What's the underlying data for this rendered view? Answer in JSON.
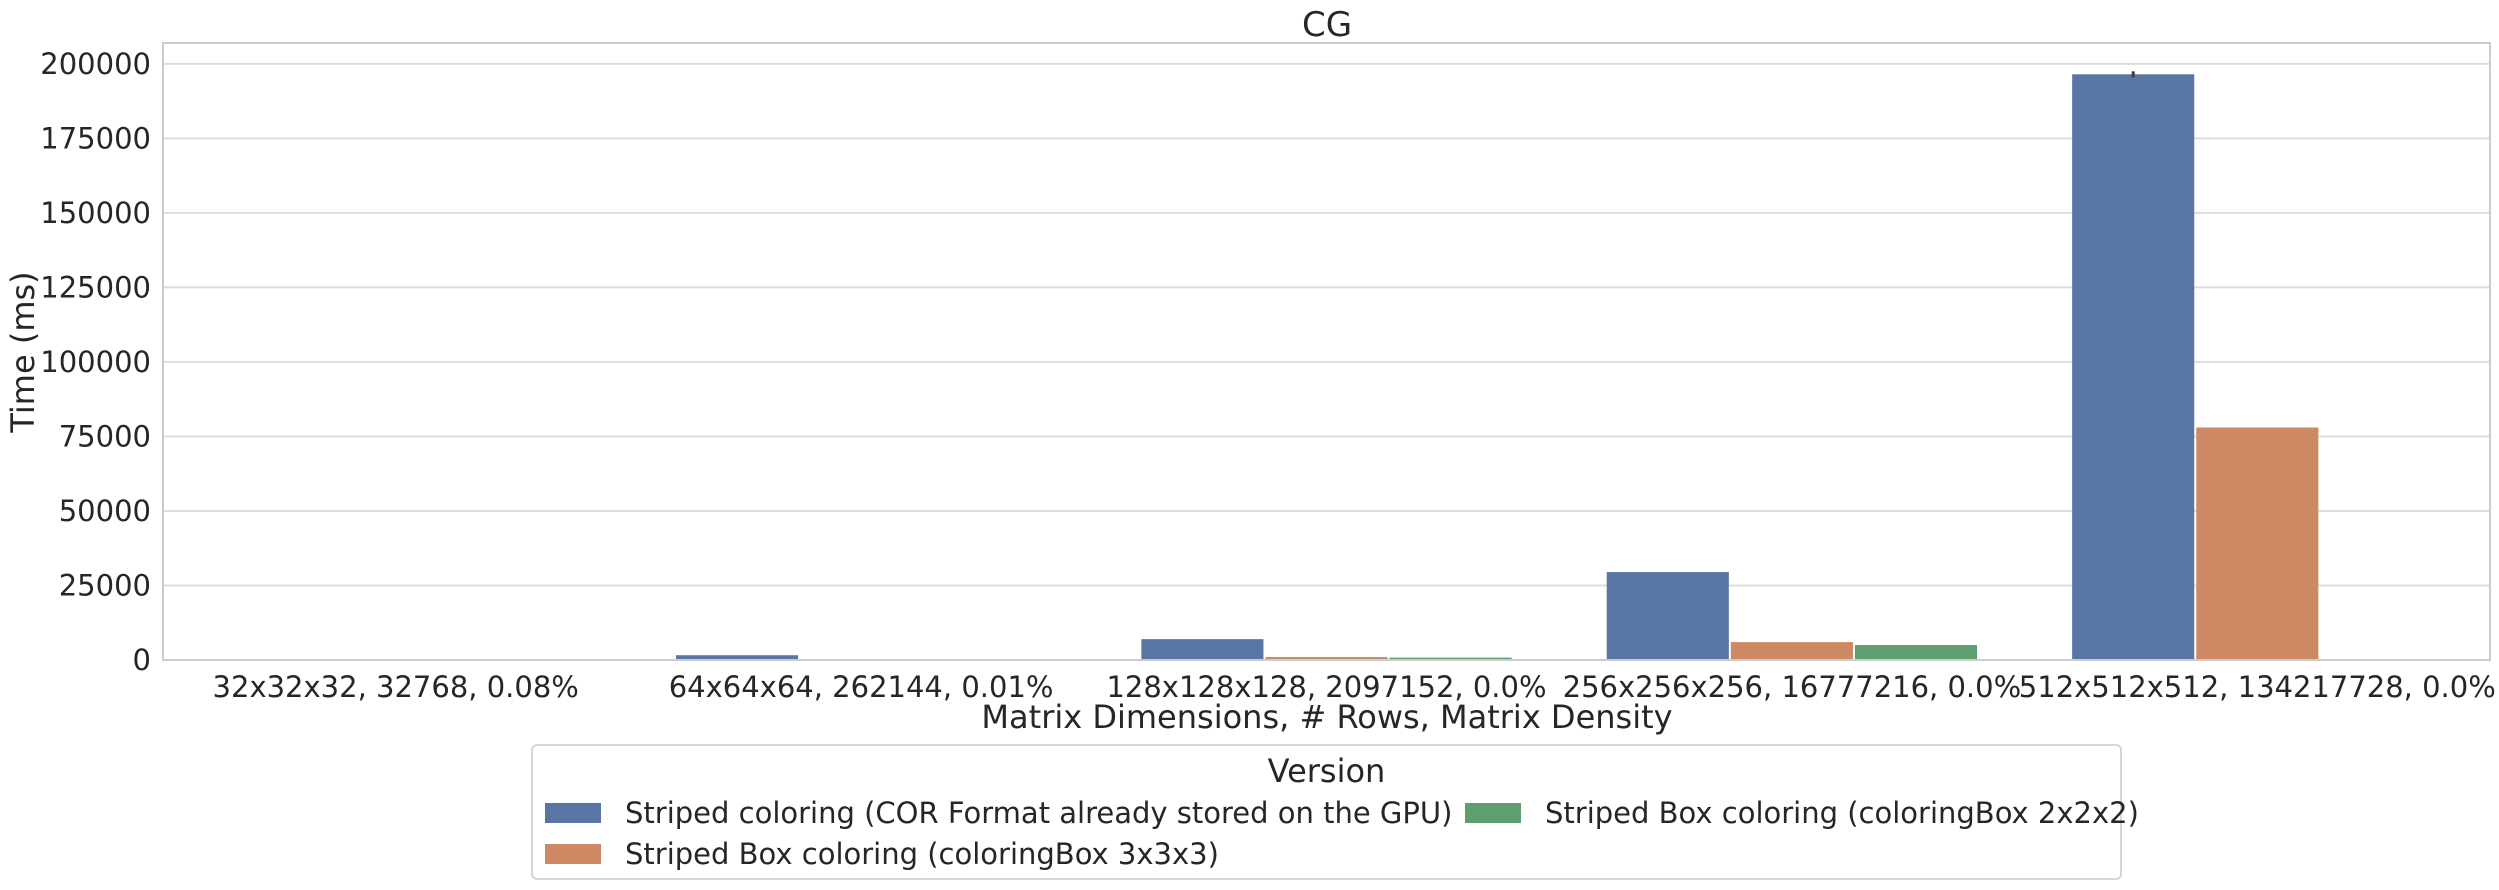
{
  "chart_data": {
    "type": "bar",
    "title": "CG",
    "xlabel": "Matrix Dimensions, # Rows, Matrix Density",
    "ylabel": "Time (ms)",
    "ylim": [
      0,
      207000
    ],
    "yticks": [
      0,
      25000,
      50000,
      75000,
      100000,
      125000,
      150000,
      175000,
      200000
    ],
    "grid": "horizontal",
    "legend_position": "bottom-center",
    "categories": [
      "32x32x32, 32768, 0.08%",
      "64x64x64, 262144, 0.01%",
      "128x128x128, 2097152, 0.0%",
      "256x256x256, 16777216, 0.0%",
      "512x512x512, 134217728, 0.0%"
    ],
    "series": [
      {
        "name": "Striped coloring (COR Format already stored on the GPU)",
        "color": "#5975a4",
        "values": [
          200,
          1600,
          7000,
          29500,
          196500
        ]
      },
      {
        "name": "Striped Box coloring (coloringBox 3x3x3)",
        "color": "#cc8963",
        "values": [
          40,
          250,
          1000,
          6000,
          78000
        ]
      },
      {
        "name": "Striped Box coloring (coloringBox 2x2x2)",
        "color": "#5f9e6e",
        "values": [
          40,
          180,
          800,
          5000,
          0
        ]
      }
    ],
    "error_bar": {
      "category_index": 4,
      "series_index": 0,
      "low": 195500,
      "high": 197500
    }
  },
  "legend": {
    "title": "Version"
  }
}
